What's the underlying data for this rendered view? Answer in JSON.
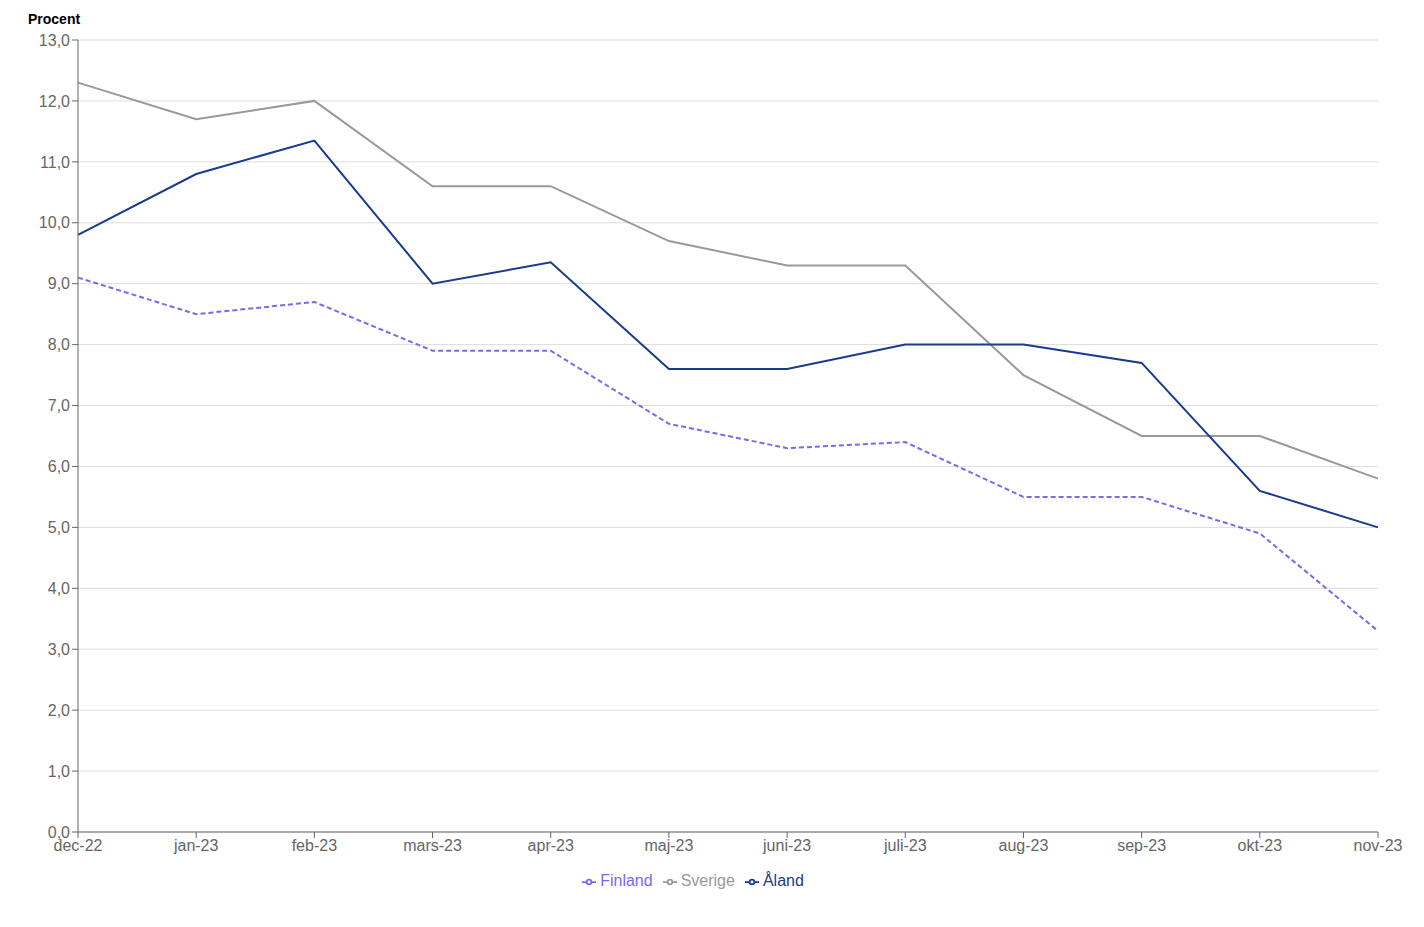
{
  "chart_data": {
    "type": "line",
    "ylabel": "Procent",
    "categories": [
      "dec-22",
      "jan-23",
      "feb-23",
      "mars-23",
      "apr-23",
      "maj-23",
      "juni-23",
      "juli-23",
      "aug-23",
      "sep-23",
      "okt-23",
      "nov-23"
    ],
    "series": [
      {
        "name": "Sverige",
        "color": "#999999",
        "line_style": "solid",
        "values": [
          12.3,
          11.7,
          12.0,
          10.6,
          10.6,
          9.7,
          9.3,
          9.3,
          7.5,
          6.5,
          6.5,
          5.8
        ]
      },
      {
        "name": "Finland",
        "color": "#7b68ee",
        "line_style": "dashed",
        "values": [
          9.1,
          8.5,
          8.7,
          7.9,
          7.9,
          6.7,
          6.3,
          6.4,
          5.5,
          5.5,
          4.9,
          3.3
        ]
      },
      {
        "name": "Åland",
        "color": "#1a3a8c",
        "line_style": "solid",
        "values": [
          9.8,
          10.8,
          11.35,
          9.0,
          9.35,
          7.6,
          7.6,
          8.0,
          8.0,
          7.7,
          5.6,
          5.0
        ]
      }
    ],
    "ylim": [
      0,
      13
    ],
    "yticks": [
      {
        "value": 0,
        "label": "0,0"
      },
      {
        "value": 1,
        "label": "1,0"
      },
      {
        "value": 2,
        "label": "2,0"
      },
      {
        "value": 3,
        "label": "3,0"
      },
      {
        "value": 4,
        "label": "4,0"
      },
      {
        "value": 5,
        "label": "5,0"
      },
      {
        "value": 6,
        "label": "6,0"
      },
      {
        "value": 7,
        "label": "7,0"
      },
      {
        "value": 8,
        "label": "8,0"
      },
      {
        "value": 9,
        "label": "9,0"
      },
      {
        "value": 10,
        "label": "10,0"
      },
      {
        "value": 11,
        "label": "11,0"
      },
      {
        "value": 12,
        "label": "12,0"
      },
      {
        "value": 13,
        "label": "13,0"
      }
    ],
    "grid": "y",
    "legend": "bottom"
  }
}
